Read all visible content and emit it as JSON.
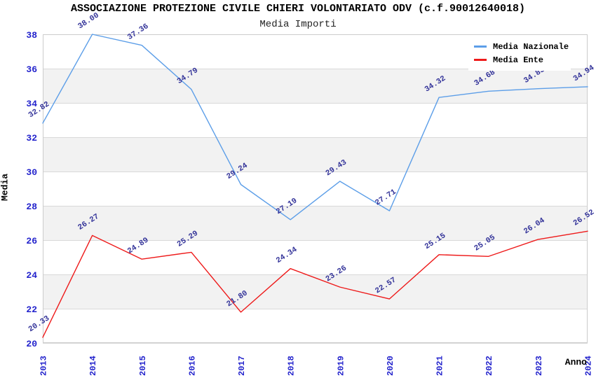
{
  "header": {
    "title": "ASSOCIAZIONE PROTEZIONE CIVILE CHIERI VOLONTARIATO ODV (c.f.90012640018)",
    "subtitle": "Media Importi"
  },
  "axes": {
    "ylabel": "Media",
    "xlabel": "Anno"
  },
  "legend": {
    "items": [
      {
        "label": "Media Nazionale",
        "color": "#5c9ee8"
      },
      {
        "label": "Media Ente",
        "color": "#ee1a1a"
      }
    ]
  },
  "chart_data": {
    "type": "line",
    "title": "ASSOCIAZIONE PROTEZIONE CIVILE CHIERI VOLONTARIATO ODV (c.f.90012640018)",
    "subtitle": "Media Importi",
    "xlabel": "Anno",
    "ylabel": "Media",
    "categories": [
      "2013",
      "2014",
      "2015",
      "2016",
      "2017",
      "2018",
      "2019",
      "2020",
      "2021",
      "2022",
      "2023",
      "2024"
    ],
    "series": [
      {
        "name": "Media Nazionale",
        "color": "#5c9ee8",
        "values": [
          32.82,
          38.0,
          37.36,
          34.79,
          29.24,
          27.19,
          29.43,
          27.71,
          34.32,
          34.68,
          34.83,
          34.94
        ],
        "labels": [
          "32.82",
          "38.00",
          "37.36",
          "34.79",
          "29.24",
          "27.19",
          "29.43",
          "27.71",
          "34.32",
          "34.68",
          "34.83",
          "34.94"
        ]
      },
      {
        "name": "Media Ente",
        "color": "#ee1a1a",
        "values": [
          20.33,
          26.27,
          24.89,
          25.29,
          21.8,
          24.34,
          23.26,
          22.57,
          25.15,
          25.05,
          26.04,
          26.52
        ],
        "labels": [
          "20.33",
          "26.27",
          "24.89",
          "25.29",
          "21.80",
          "24.34",
          "23.26",
          "22.57",
          "25.15",
          "25.05",
          "26.04",
          "26.52"
        ]
      }
    ],
    "ylim": [
      20,
      38
    ],
    "ytick_step": 2,
    "grid": true,
    "legend_position": "top-right",
    "band_color": "#f2f2f2",
    "gridline_color": "#d9d9d9",
    "plot_border_color": "#cccccc",
    "tick_label_color": "#2222cc",
    "value_label_color": "#333399"
  }
}
